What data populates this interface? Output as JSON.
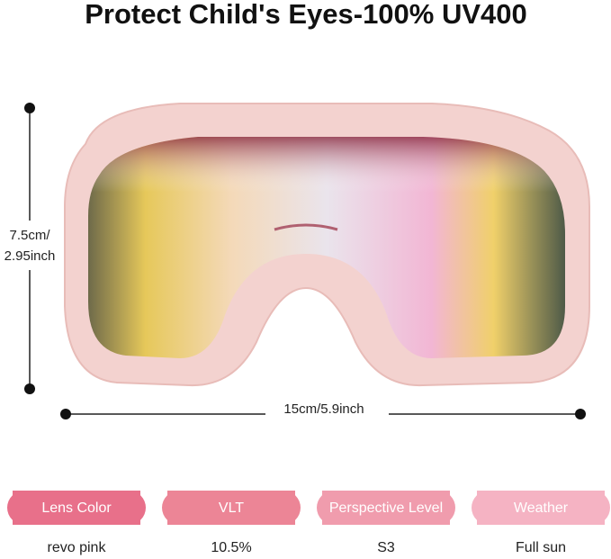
{
  "header": {
    "title": "Protect Child's Eyes-100% UV400"
  },
  "dimensions": {
    "height_line1": "7.5cm/",
    "height_line2": "2.95inch",
    "width": "15cm/5.9inch"
  },
  "specs": [
    {
      "label": "Lens Color",
      "value": "revo pink"
    },
    {
      "label": "VLT",
      "value": "10.5%"
    },
    {
      "label": "Perspective Level",
      "value": "S3"
    },
    {
      "label": "Weather",
      "value": "Full sun"
    }
  ]
}
